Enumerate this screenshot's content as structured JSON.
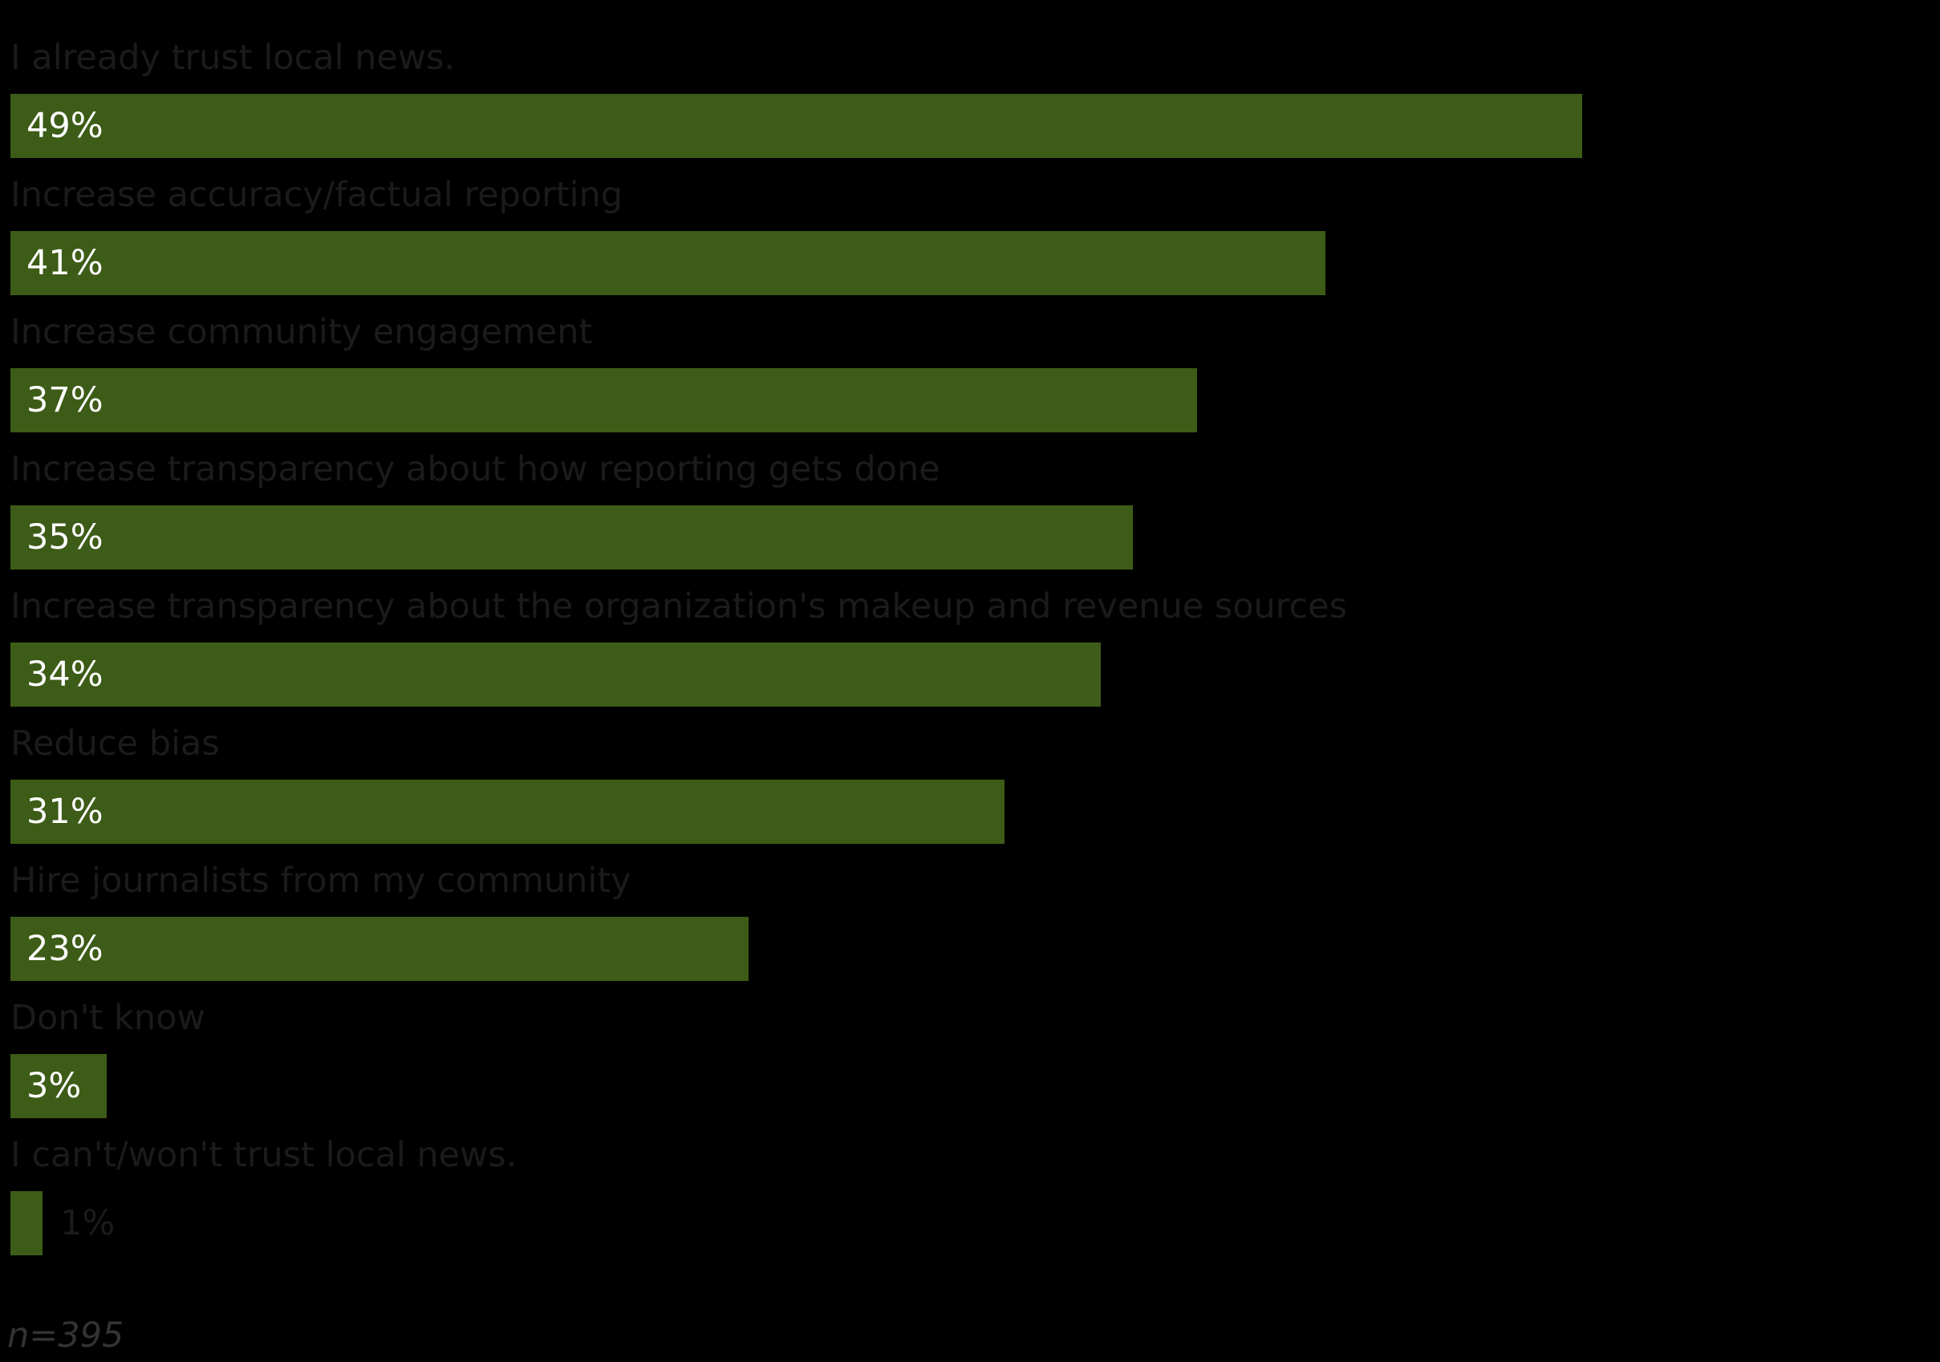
{
  "chart_data": {
    "type": "bar",
    "orientation": "horizontal",
    "categories": [
      "I already trust local news.",
      "Increase accuracy/factual reporting",
      "Increase community engagement",
      "Increase transparency about how reporting gets done",
      "Increase transparency about the organization's makeup and revenue sources",
      "Reduce bias",
      "Hire journalists from my community",
      "Don't know",
      "I can't/won't trust local news."
    ],
    "values": [
      49,
      41,
      37,
      35,
      34,
      31,
      23,
      3,
      1
    ],
    "value_labels": [
      "49%",
      "41%",
      "37%",
      "35%",
      "34%",
      "31%",
      "23%",
      "3%",
      "1%"
    ],
    "unit": "%",
    "bar_color": "#3d5c17",
    "grid": false,
    "legend": "none"
  },
  "footnote": "n=395"
}
